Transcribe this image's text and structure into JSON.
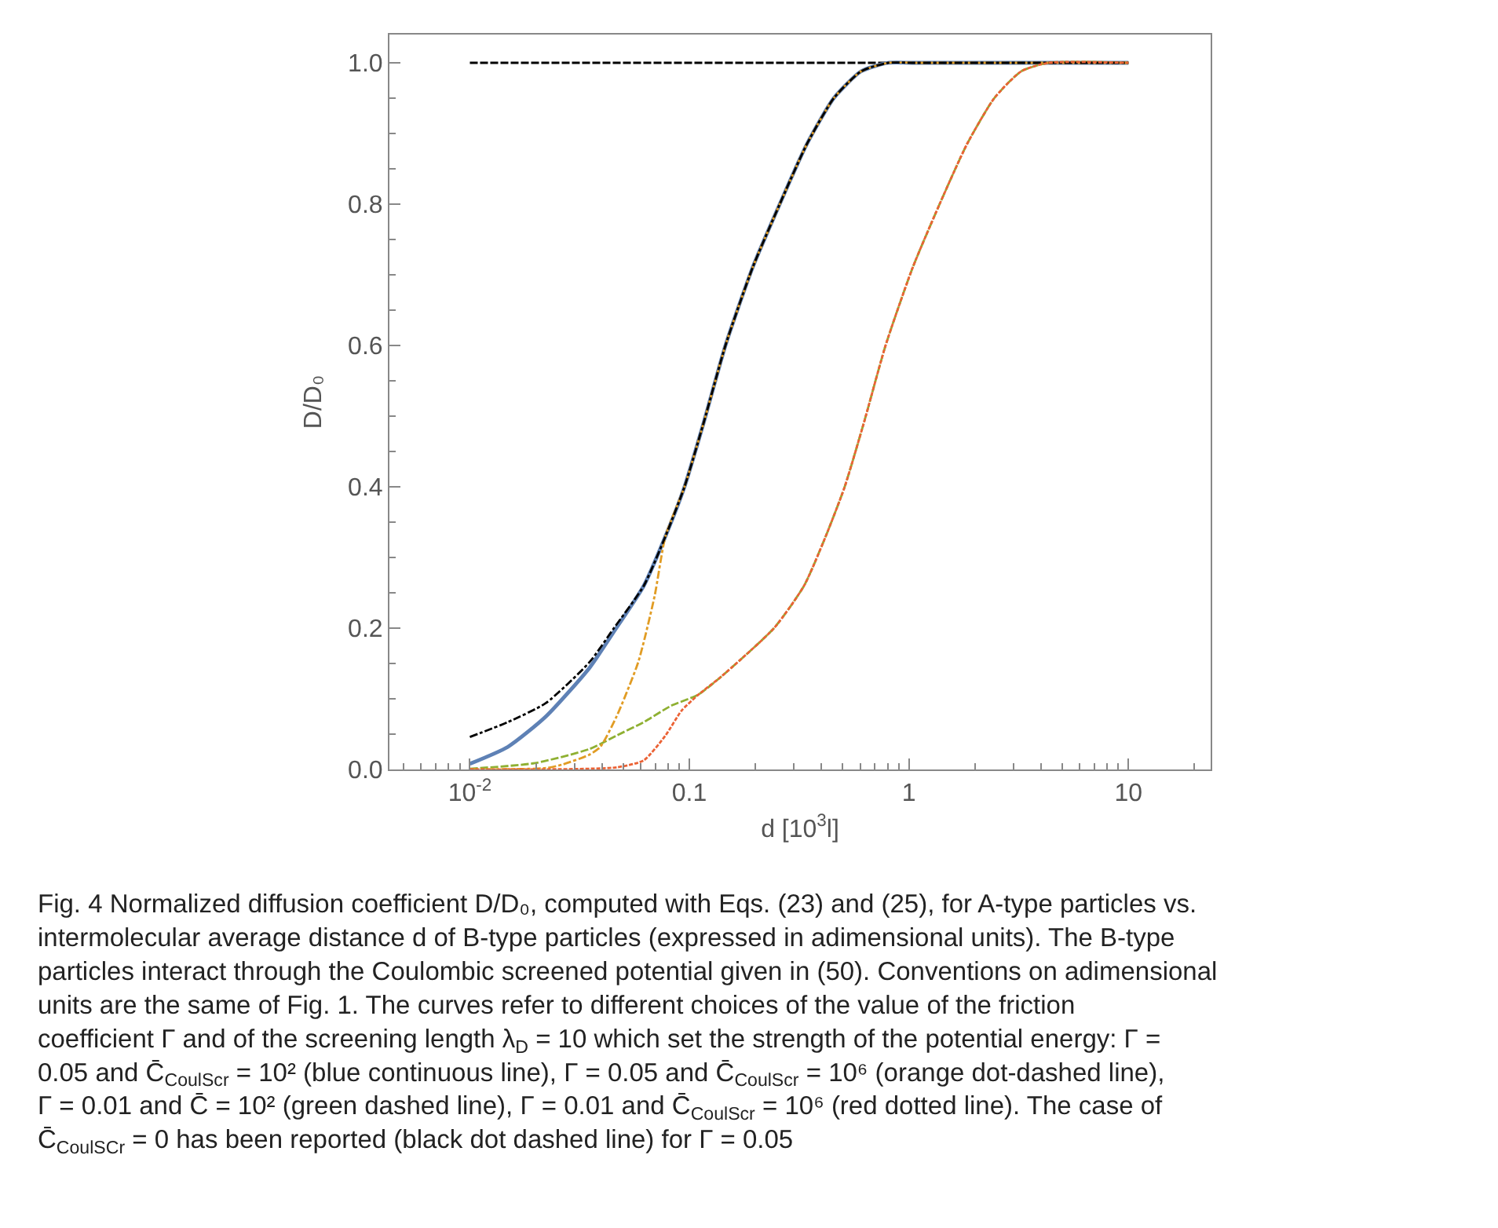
{
  "chart_data": {
    "type": "line",
    "xlabel": "d [10$^{3}$l]",
    "ylabel": "D/D₀",
    "log": "x",
    "xlim": [
      0.0043,
      23.7
    ],
    "ylim": [
      0,
      1.04
    ],
    "xticks": [
      {
        "value": 0.01,
        "label": "10$^{-2}$"
      },
      0.1,
      1,
      10
    ],
    "yticks": [
      {
        "value": 0,
        "label": "0.0"
      },
      {
        "value": 0.2,
        "label": "0.2"
      },
      {
        "value": 0.4,
        "label": "0.4"
      },
      {
        "value": 0.6,
        "label": "0.6"
      },
      {
        "value": 0.8,
        "label": "0.8"
      },
      {
        "value": 1,
        "label": "1.0"
      }
    ],
    "series": [
      {
        "color": "#000000",
        "line_style": "dashed",
        "x": [
          0.01,
          10
        ],
        "values": [
          1,
          1
        ]
      },
      {
        "color": "#5e81b5",
        "line_style": "solid",
        "x": [
          0.01,
          0.0149,
          0.0222,
          0.0351,
          0.0453,
          0.062,
          0.0778,
          0.095,
          0.116,
          0.146,
          0.194,
          0.258,
          0.343,
          0.455,
          0.606,
          0.805,
          1.07,
          10
        ],
        "values": [
          0.008,
          0.032,
          0.075,
          0.144,
          0.195,
          0.26,
          0.33,
          0.4,
          0.49,
          0.6,
          0.71,
          0.8,
          0.885,
          0.95,
          0.988,
          1.0,
          1.0,
          1.0
        ]
      },
      {
        "color": "#8fb032",
        "line_style": "dashed",
        "x": [
          0.01,
          0.0198,
          0.0351,
          0.0466,
          0.062,
          0.0824,
          0.11,
          0.138,
          0.243,
          0.333,
          0.418,
          0.51,
          0.623,
          0.783,
          1.04,
          1.38,
          1.84,
          2.45,
          3.25,
          4.33,
          10
        ],
        "values": [
          0.001,
          0.009,
          0.029,
          0.048,
          0.067,
          0.09,
          0.106,
          0.13,
          0.2,
          0.26,
          0.33,
          0.4,
          0.49,
          0.6,
          0.71,
          0.8,
          0.885,
          0.95,
          0.988,
          1.0,
          1.0
        ]
      },
      {
        "color": "#e19c24",
        "line_style": "dashdot",
        "x": [
          0.01,
          0.0222,
          0.0264,
          0.0351,
          0.0393,
          0.0466,
          0.0585,
          0.0694,
          0.0778,
          0.095,
          0.116,
          0.146,
          0.194,
          0.258,
          0.343,
          0.455,
          0.606,
          0.805,
          1.07,
          10
        ],
        "values": [
          0,
          0.002,
          0.007,
          0.021,
          0.032,
          0.075,
          0.152,
          0.245,
          0.33,
          0.4,
          0.49,
          0.6,
          0.71,
          0.8,
          0.885,
          0.95,
          0.988,
          1.0,
          1.0,
          1.0
        ]
      },
      {
        "color": "#000000",
        "line_style": "dashdot",
        "x": [
          0.01,
          0.0149,
          0.0222,
          0.0351,
          0.0453,
          0.062,
          0.0778,
          0.095,
          0.116,
          0.146,
          0.194,
          0.258,
          0.343,
          0.455,
          0.606,
          0.805,
          1.07,
          10
        ],
        "values": [
          0.046,
          0.067,
          0.094,
          0.152,
          0.2,
          0.26,
          0.33,
          0.4,
          0.49,
          0.6,
          0.71,
          0.8,
          0.885,
          0.95,
          0.988,
          1.0,
          1.0,
          1.0
        ]
      },
      {
        "color": "#eb6235",
        "line_style": "dotted",
        "x": [
          0.01,
          0.0466,
          0.062,
          0.0778,
          0.092,
          0.11,
          0.138,
          0.243,
          0.333,
          0.418,
          0.51,
          0.623,
          0.783,
          1.04,
          1.38,
          1.84,
          2.45,
          3.25,
          4.33,
          10
        ],
        "values": [
          0,
          0.003,
          0.013,
          0.048,
          0.083,
          0.106,
          0.13,
          0.2,
          0.26,
          0.33,
          0.4,
          0.49,
          0.6,
          0.71,
          0.8,
          0.885,
          0.95,
          0.988,
          1.0,
          1.0
        ]
      }
    ],
    "annotations": [
      "Fig. 4 Normalized diffusion coefficient D/D₀, computed with Eqs. (23) and (25), for A-type particles vs. intermolecular average distance d of B-type particles (expressed in adimensional units). The B-type particles interact through the Coulombic screened potential given in (50). Conventions on adimensional units are the same of Fig. 1. The curves refer to different choices of the value of the friction coefficient Γ and of the screening length λ$_{D}$ = 10 which set the strength of the potential energy: Γ = 0.05 and C̄$_{CoulScr}$ = 10² (blue continuous line), Γ = 0.05 and C̄$_{CoulScr}$ = 10⁶ (orange dot-dashed line), Γ = 0.01 and C̄ = 10² (green dashed line), Γ = 0.01 and C̄$_{CoulScr}$ = 10⁶ (red dotted line). The case of C̄$_{CoulSCr}$ = 0 has been reported (black dot dashed line) for Γ = 0.05"
    ]
  }
}
